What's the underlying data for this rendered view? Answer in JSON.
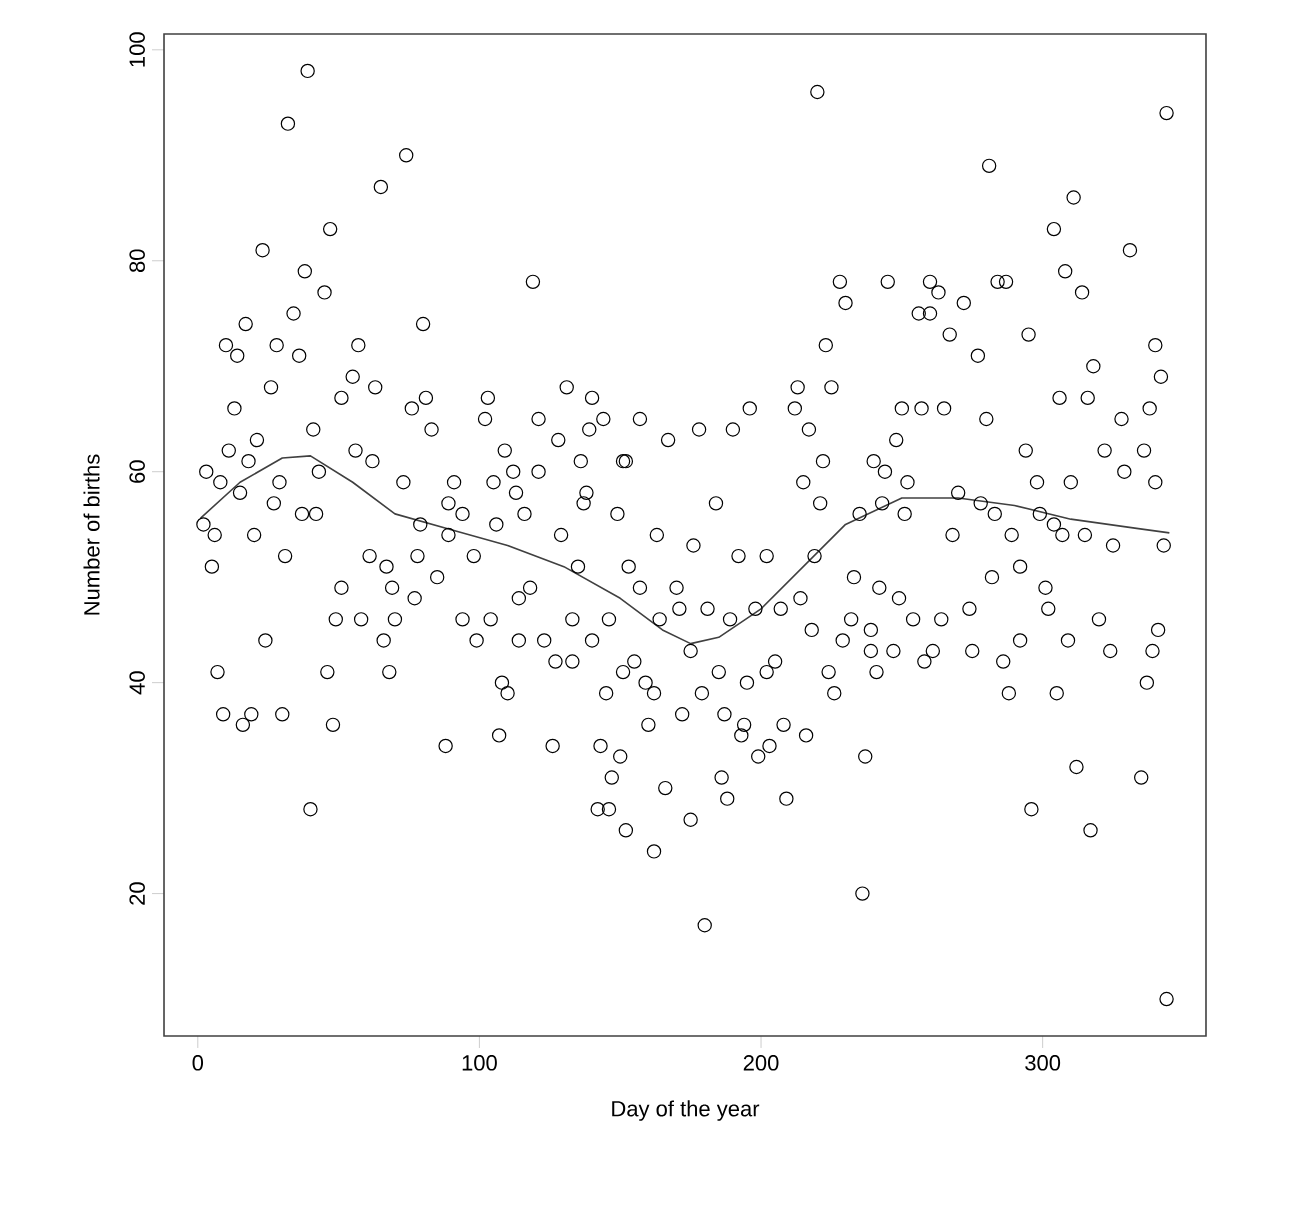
{
  "chart_data": {
    "type": "scatter",
    "xlabel": "Day of the year",
    "ylabel": "Number of births",
    "xlim": [
      -12,
      358
    ],
    "ylim": [
      6.5,
      101.5
    ],
    "xticks": [
      0,
      100,
      200,
      300
    ],
    "yticks": [
      20,
      40,
      60,
      80,
      100
    ],
    "grid": false,
    "series": [
      {
        "marker": "circle",
        "color": "#000000",
        "x": [
          39,
          32,
          74,
          65,
          47,
          23,
          38,
          45,
          119,
          34,
          17,
          80,
          10,
          28,
          57,
          14,
          36,
          26,
          55,
          63,
          13,
          51,
          81,
          131,
          140,
          41,
          76,
          103,
          102,
          121,
          83,
          139,
          144,
          21,
          11,
          56,
          109,
          128,
          18,
          62,
          136,
          151,
          3,
          43,
          112,
          121,
          8,
          29,
          73,
          91,
          105,
          15,
          113,
          138,
          27,
          89,
          137,
          37,
          42,
          116,
          149,
          2,
          79,
          94,
          106,
          6,
          20,
          89,
          129,
          5,
          31,
          61,
          78,
          98,
          67,
          85,
          51,
          69,
          118,
          135,
          77,
          114,
          49,
          58,
          70,
          94,
          104,
          133,
          146,
          24,
          66,
          99,
          114,
          123,
          140,
          127,
          133,
          151,
          7,
          46,
          68,
          108,
          110,
          145,
          9,
          16,
          19,
          30,
          48,
          88,
          107,
          126,
          143,
          150,
          147,
          40,
          142,
          146,
          152,
          220,
          281,
          311,
          304,
          331,
          308,
          314,
          228,
          245,
          260,
          284,
          287,
          230,
          263,
          272,
          256,
          260,
          267,
          295,
          277,
          223,
          318,
          213,
          225,
          306,
          316,
          196,
          212,
          250,
          257,
          265,
          217,
          280,
          328,
          178,
          190,
          157,
          167,
          248,
          322,
          152,
          222,
          240,
          294,
          244,
          329,
          215,
          252,
          298,
          310,
          184,
          221,
          243,
          235,
          251,
          270,
          278,
          283,
          299,
          304,
          268,
          289,
          307,
          315,
          163,
          176,
          192,
          202,
          325,
          153,
          157,
          170,
          219,
          233,
          242,
          249,
          164,
          171,
          181,
          189,
          198,
          207,
          214,
          232,
          254,
          264,
          274,
          292,
          282,
          301,
          302,
          320,
          175,
          218,
          229,
          239,
          239,
          247,
          258,
          261,
          275,
          286,
          292,
          309,
          324,
          155,
          159,
          162,
          185,
          195,
          202,
          205,
          224,
          226,
          241,
          288,
          305,
          172,
          179,
          187,
          160,
          194,
          193,
          208,
          216,
          203,
          199,
          166,
          186,
          188,
          209,
          237,
          175,
          162,
          180,
          236,
          296,
          312,
          317,
          344,
          340,
          342,
          338,
          336,
          340,
          343,
          341,
          339,
          337,
          335,
          344
        ],
        "values": [
          98,
          93,
          90,
          87,
          83,
          81,
          79,
          77,
          78,
          75,
          74,
          74,
          72,
          72,
          72,
          71,
          71,
          68,
          69,
          68,
          66,
          67,
          67,
          68,
          67,
          64,
          66,
          67,
          65,
          65,
          64,
          64,
          65,
          63,
          62,
          62,
          62,
          63,
          61,
          61,
          61,
          61,
          60,
          60,
          60,
          60,
          59,
          59,
          59,
          59,
          59,
          58,
          58,
          58,
          57,
          57,
          57,
          56,
          56,
          56,
          56,
          55,
          55,
          56,
          55,
          54,
          54,
          54,
          54,
          51,
          52,
          52,
          52,
          52,
          51,
          50,
          49,
          49,
          49,
          51,
          48,
          48,
          46,
          46,
          46,
          46,
          46,
          46,
          46,
          44,
          44,
          44,
          44,
          44,
          44,
          42,
          42,
          41,
          41,
          41,
          41,
          40,
          39,
          39,
          37,
          36,
          37,
          37,
          36,
          34,
          35,
          34,
          34,
          33,
          31,
          28,
          28,
          28,
          26,
          96,
          89,
          86,
          83,
          81,
          79,
          77,
          78,
          78,
          78,
          78,
          78,
          76,
          77,
          76,
          75,
          75,
          73,
          73,
          71,
          72,
          70,
          68,
          68,
          67,
          67,
          66,
          66,
          66,
          66,
          66,
          64,
          65,
          65,
          64,
          64,
          65,
          63,
          63,
          62,
          61,
          61,
          61,
          62,
          60,
          60,
          59,
          59,
          59,
          59,
          57,
          57,
          57,
          56,
          56,
          58,
          57,
          56,
          56,
          55,
          54,
          54,
          54,
          54,
          54,
          53,
          52,
          52,
          53,
          51,
          49,
          49,
          52,
          50,
          49,
          48,
          46,
          47,
          47,
          46,
          47,
          47,
          48,
          46,
          46,
          46,
          47,
          51,
          50,
          49,
          47,
          46,
          43,
          45,
          44,
          45,
          43,
          43,
          42,
          43,
          43,
          42,
          44,
          44,
          43,
          42,
          40,
          39,
          41,
          40,
          41,
          42,
          41,
          39,
          41,
          39,
          39,
          37,
          39,
          37,
          36,
          36,
          35,
          36,
          35,
          34,
          33,
          30,
          31,
          29,
          29,
          33,
          27,
          24,
          17,
          20,
          28,
          32,
          26,
          94,
          72,
          69,
          66,
          62,
          59,
          53,
          45,
          43,
          40,
          31,
          10
        ]
      },
      {
        "type": "line",
        "color": "#404040",
        "x": [
          1,
          15,
          30,
          40,
          55,
          70,
          90,
          110,
          130,
          150,
          165,
          175,
          185,
          200,
          215,
          230,
          250,
          270,
          290,
          310,
          334,
          345
        ],
        "values": [
          55.6,
          59,
          61.3,
          61.5,
          59,
          56,
          54.5,
          53,
          51,
          48,
          45,
          43.7,
          44.3,
          47,
          51,
          55,
          57.5,
          57.5,
          56.8,
          55.5,
          54.6,
          54.2
        ]
      }
    ]
  }
}
